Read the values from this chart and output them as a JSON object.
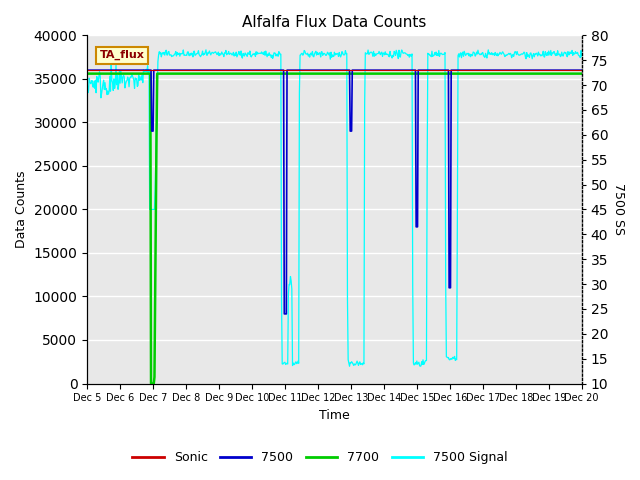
{
  "title": "Alfalfa Flux Data Counts",
  "xlabel": "Time",
  "ylabel_left": "Data Counts",
  "ylabel_right": "7500 SS",
  "ylim_left": [
    0,
    40000
  ],
  "ylim_right": [
    10,
    80
  ],
  "annotation_text": "TA_flux",
  "bg_color": "#e8e8e8",
  "grid_color": "white",
  "sonic_color": "#cc0000",
  "line7500_color": "#0000cc",
  "line7700_color": "#00cc00",
  "signal_color": "cyan",
  "x_tick_labels": [
    "Dec 5",
    "Dec 6",
    "Dec 7",
    "Dec 8",
    "Dec 9",
    "Dec 10",
    "Dec 11",
    "Dec 12",
    "Dec 13",
    "Dec 14",
    "Dec 15",
    "Dec 16",
    "Dec 17",
    "Dec 18",
    "Dec 19",
    "Dec 20"
  ],
  "x_tick_positions": [
    0,
    1,
    2,
    3,
    4,
    5,
    6,
    7,
    8,
    9,
    10,
    11,
    12,
    13,
    14,
    15
  ],
  "right_ticks": [
    10,
    15,
    20,
    25,
    30,
    35,
    40,
    45,
    50,
    55,
    60,
    65,
    70,
    75,
    80
  ],
  "left_ticks": [
    0,
    5000,
    10000,
    15000,
    20000,
    25000,
    30000,
    35000,
    40000
  ]
}
